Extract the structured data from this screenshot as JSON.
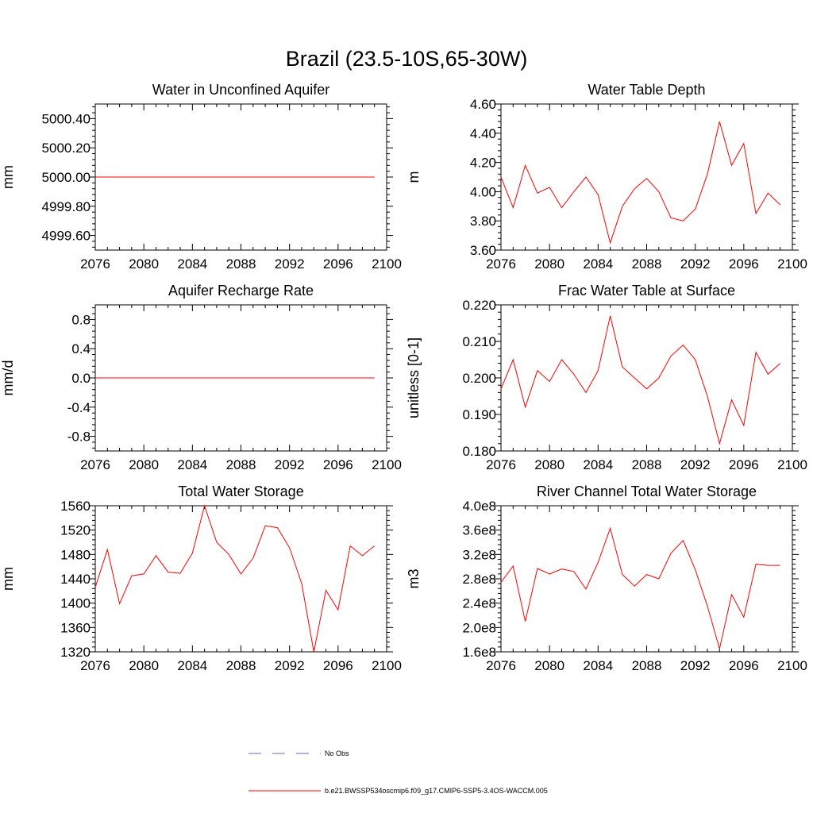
{
  "figure": {
    "title": "Brazil (23.5-10S,65-30W)"
  },
  "legend": {
    "placement": "bottom-center",
    "entries": [
      {
        "label": "No Obs",
        "color": "#6a6ab8",
        "style": "dashed"
      },
      {
        "label": "b.e21.BWSSP534oscmip6.f09_g17.CMIP6-SSP5-3.4OS-WACCM.005",
        "color": "#ff0000",
        "style": "solid"
      }
    ]
  },
  "chart_data": [
    {
      "id": "unconfined",
      "type": "line",
      "title": "Water in Unconfined Aquifer",
      "xlabel": "",
      "ylabel": "mm",
      "xlim": [
        2076,
        2100
      ],
      "ylim": [
        4999.5,
        5000.5
      ],
      "xticks": [
        2076,
        2080,
        2084,
        2088,
        2092,
        2096,
        2100
      ],
      "yticks": [
        4999.6,
        4999.8,
        5000.0,
        5000.2,
        5000.4
      ],
      "ytick_labels": [
        "4999.60",
        "4999.80",
        "5000.00",
        "5000.20",
        "5000.40"
      ],
      "x": [
        2076,
        2077,
        2078,
        2079,
        2080,
        2081,
        2082,
        2083,
        2084,
        2085,
        2086,
        2087,
        2088,
        2089,
        2090,
        2091,
        2092,
        2093,
        2094,
        2095,
        2096,
        2097,
        2098,
        2099
      ],
      "series": [
        {
          "name": "b.e21.BWSSP534oscmip6.f09_g17.CMIP6-SSP5-3.4OS-WACCM.005",
          "color": "#ff0000",
          "values": [
            5000,
            5000,
            5000,
            5000,
            5000,
            5000,
            5000,
            5000,
            5000,
            5000,
            5000,
            5000,
            5000,
            5000,
            5000,
            5000,
            5000,
            5000,
            5000,
            5000,
            5000,
            5000,
            5000,
            5000
          ]
        }
      ]
    },
    {
      "id": "wtdepth",
      "type": "line",
      "title": "Water Table Depth",
      "xlabel": "",
      "ylabel": "m",
      "xlim": [
        2076,
        2100
      ],
      "ylim": [
        3.6,
        4.6
      ],
      "xticks": [
        2076,
        2080,
        2084,
        2088,
        2092,
        2096,
        2100
      ],
      "yticks": [
        3.6,
        3.8,
        4.0,
        4.2,
        4.4,
        4.6
      ],
      "ytick_labels": [
        "3.60",
        "3.80",
        "4.00",
        "4.20",
        "4.40",
        "4.60"
      ],
      "x": [
        2076,
        2077,
        2078,
        2079,
        2080,
        2081,
        2082,
        2083,
        2084,
        2085,
        2086,
        2087,
        2088,
        2089,
        2090,
        2091,
        2092,
        2093,
        2094,
        2095,
        2096,
        2097,
        2098,
        2099
      ],
      "series": [
        {
          "name": "b.e21.BWSSP534oscmip6.f09_g17.CMIP6-SSP5-3.4OS-WACCM.005",
          "color": "#ff0000",
          "values": [
            4.1,
            3.89,
            4.18,
            3.99,
            4.03,
            3.89,
            4.0,
            4.1,
            3.98,
            3.65,
            3.9,
            4.02,
            4.09,
            4.0,
            3.82,
            3.8,
            3.88,
            4.12,
            4.48,
            4.18,
            4.33,
            3.85,
            3.99,
            3.91
          ]
        }
      ]
    },
    {
      "id": "recharge",
      "type": "line",
      "title": "Aquifer Recharge Rate",
      "xlabel": "",
      "ylabel": "mm/d",
      "xlim": [
        2076,
        2100
      ],
      "ylim": [
        -1.0,
        1.0
      ],
      "xticks": [
        2076,
        2080,
        2084,
        2088,
        2092,
        2096,
        2100
      ],
      "yticks": [
        -0.8,
        -0.4,
        0.0,
        0.4,
        0.8
      ],
      "ytick_labels": [
        "-0.8",
        "-0.4",
        "0.0",
        "0.4",
        "0.8"
      ],
      "x": [
        2076,
        2077,
        2078,
        2079,
        2080,
        2081,
        2082,
        2083,
        2084,
        2085,
        2086,
        2087,
        2088,
        2089,
        2090,
        2091,
        2092,
        2093,
        2094,
        2095,
        2096,
        2097,
        2098,
        2099
      ],
      "series": [
        {
          "name": "b.e21.BWSSP534oscmip6.f09_g17.CMIP6-SSP5-3.4OS-WACCM.005",
          "color": "#ff0000",
          "values": [
            0,
            0,
            0,
            0,
            0,
            0,
            0,
            0,
            0,
            0,
            0,
            0,
            0,
            0,
            0,
            0,
            0,
            0,
            0,
            0,
            0,
            0,
            0,
            0
          ]
        }
      ]
    },
    {
      "id": "fracwt",
      "type": "line",
      "title": "Frac Water Table at Surface",
      "xlabel": "",
      "ylabel": "unitless [0-1]",
      "xlim": [
        2076,
        2100
      ],
      "ylim": [
        0.18,
        0.22
      ],
      "xticks": [
        2076,
        2080,
        2084,
        2088,
        2092,
        2096,
        2100
      ],
      "yticks": [
        0.18,
        0.19,
        0.2,
        0.21,
        0.22
      ],
      "ytick_labels": [
        "0.180",
        "0.190",
        "0.200",
        "0.210",
        "0.220"
      ],
      "x": [
        2076,
        2077,
        2078,
        2079,
        2080,
        2081,
        2082,
        2083,
        2084,
        2085,
        2086,
        2087,
        2088,
        2089,
        2090,
        2091,
        2092,
        2093,
        2094,
        2095,
        2096,
        2097,
        2098,
        2099
      ],
      "series": [
        {
          "name": "b.e21.BWSSP534oscmip6.f09_g17.CMIP6-SSP5-3.4OS-WACCM.005",
          "color": "#ff0000",
          "values": [
            0.197,
            0.205,
            0.192,
            0.202,
            0.199,
            0.205,
            0.201,
            0.196,
            0.202,
            0.217,
            0.203,
            0.2,
            0.197,
            0.2,
            0.206,
            0.209,
            0.205,
            0.195,
            0.182,
            0.194,
            0.187,
            0.207,
            0.201,
            0.204
          ]
        }
      ]
    },
    {
      "id": "tws",
      "type": "line",
      "title": "Total Water Storage",
      "xlabel": "",
      "ylabel": "mm",
      "xlim": [
        2076,
        2100
      ],
      "ylim": [
        1320,
        1560
      ],
      "xticks": [
        2076,
        2080,
        2084,
        2088,
        2092,
        2096,
        2100
      ],
      "yticks": [
        1320,
        1360,
        1400,
        1440,
        1480,
        1520,
        1560
      ],
      "ytick_labels": [
        "1320",
        "1360",
        "1400",
        "1440",
        "1480",
        "1520",
        "1560"
      ],
      "x": [
        2076,
        2077,
        2078,
        2079,
        2080,
        2081,
        2082,
        2083,
        2084,
        2085,
        2086,
        2087,
        2088,
        2089,
        2090,
        2091,
        2092,
        2093,
        2094,
        2095,
        2096,
        2097,
        2098,
        2099
      ],
      "series": [
        {
          "name": "b.e21.BWSSP534oscmip6.f09_g17.CMIP6-SSP5-3.4OS-WACCM.005",
          "color": "#ff0000",
          "values": [
            1426,
            1488,
            1399,
            1445,
            1448,
            1478,
            1451,
            1449,
            1482,
            1560,
            1500,
            1480,
            1448,
            1474,
            1527,
            1524,
            1491,
            1432,
            1320,
            1421,
            1389,
            1494,
            1478,
            1494
          ]
        }
      ]
    },
    {
      "id": "river",
      "type": "line",
      "title": "River Channel Total Water Storage",
      "xlabel": "",
      "ylabel": "m3",
      "xlim": [
        2076,
        2100
      ],
      "ylim": [
        160000000.0,
        400000000.0
      ],
      "xticks": [
        2076,
        2080,
        2084,
        2088,
        2092,
        2096,
        2100
      ],
      "yticks": [
        160000000.0,
        200000000.0,
        240000000.0,
        280000000.0,
        320000000.0,
        360000000.0,
        400000000.0
      ],
      "ytick_labels": [
        "1.6e8",
        "2.0e8",
        "2.4e8",
        "2.8e8",
        "3.2e8",
        "3.6e8",
        "4.0e8"
      ],
      "x": [
        2076,
        2077,
        2078,
        2079,
        2080,
        2081,
        2082,
        2083,
        2084,
        2085,
        2086,
        2087,
        2088,
        2089,
        2090,
        2091,
        2092,
        2093,
        2094,
        2095,
        2096,
        2097,
        2098,
        2099
      ],
      "series": [
        {
          "name": "b.e21.BWSSP534oscmip6.f09_g17.CMIP6-SSP5-3.4OS-WACCM.005",
          "color": "#ff0000",
          "values": [
            274000000.0,
            301000000.0,
            210000000.0,
            297000000.0,
            288000000.0,
            296000000.0,
            292000000.0,
            263000000.0,
            307000000.0,
            363000000.0,
            287000000.0,
            268000000.0,
            287000000.0,
            280000000.0,
            322000000.0,
            343000000.0,
            295000000.0,
            235000000.0,
            165000000.0,
            254000000.0,
            217000000.0,
            304000000.0,
            302000000.0,
            302000000.0
          ]
        }
      ]
    }
  ]
}
